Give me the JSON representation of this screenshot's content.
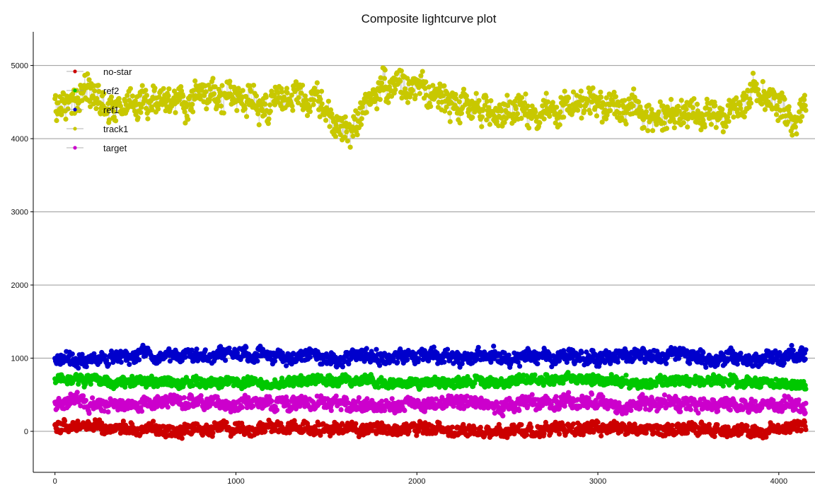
{
  "chart_data": {
    "type": "scatter",
    "title": "Composite lightcurve plot",
    "xlabel": "",
    "ylabel": "",
    "xlim": [
      -120,
      4200
    ],
    "ylim": [
      -560,
      5460
    ],
    "x_ticks": [
      0,
      1000,
      2000,
      3000,
      4000
    ],
    "y_ticks": [
      0,
      1000,
      2000,
      3000,
      4000,
      5000
    ],
    "grid": "horizontal",
    "legend_position": "top-left",
    "n_points": 4150,
    "series": [
      {
        "name": "no-star",
        "color": "#cc0000",
        "marker": "circle",
        "line": true,
        "baseline": 30,
        "spread": 85,
        "range": [
          -270,
          300
        ],
        "anchors": [
          [
            0,
            80
          ],
          [
            300,
            40
          ],
          [
            600,
            30
          ],
          [
            900,
            20
          ],
          [
            1200,
            30
          ],
          [
            1500,
            40
          ],
          [
            1800,
            20
          ],
          [
            2100,
            30
          ],
          [
            2400,
            10
          ],
          [
            2700,
            20
          ],
          [
            3000,
            40
          ],
          [
            3300,
            30
          ],
          [
            3600,
            20
          ],
          [
            3900,
            10
          ],
          [
            4150,
            60
          ]
        ]
      },
      {
        "name": "ref2",
        "color": "#00c800",
        "marker": "circle",
        "line": true,
        "baseline": 690,
        "spread": 70,
        "range": [
          450,
          900
        ],
        "anchors": [
          [
            0,
            720
          ],
          [
            300,
            680
          ],
          [
            600,
            690
          ],
          [
            900,
            680
          ],
          [
            1200,
            660
          ],
          [
            1500,
            700
          ],
          [
            1800,
            680
          ],
          [
            2100,
            660
          ],
          [
            2400,
            680
          ],
          [
            2700,
            690
          ],
          [
            3000,
            700
          ],
          [
            3300,
            680
          ],
          [
            3600,
            700
          ],
          [
            3900,
            680
          ],
          [
            4150,
            620
          ]
        ]
      },
      {
        "name": "ref1",
        "color": "#0000cc",
        "marker": "circle",
        "line": true,
        "baseline": 1000,
        "spread": 95,
        "range": [
          780,
          1380
        ],
        "anchors": [
          [
            0,
            960
          ],
          [
            300,
            990
          ],
          [
            600,
            1030
          ],
          [
            900,
            1050
          ],
          [
            1200,
            1000
          ],
          [
            1500,
            1020
          ],
          [
            1800,
            990
          ],
          [
            2100,
            1030
          ],
          [
            2400,
            1010
          ],
          [
            2700,
            1020
          ],
          [
            3000,
            1000
          ],
          [
            3300,
            1040
          ],
          [
            3600,
            1020
          ],
          [
            3900,
            1000
          ],
          [
            4150,
            1040
          ]
        ]
      },
      {
        "name": "track1",
        "color": "#c8c800",
        "marker": "circle",
        "line": true,
        "baseline": 4450,
        "spread": 210,
        "range": [
          3780,
          5200
        ],
        "anchors": [
          [
            0,
            4400
          ],
          [
            150,
            4650
          ],
          [
            300,
            4450
          ],
          [
            500,
            4500
          ],
          [
            700,
            4500
          ],
          [
            900,
            4550
          ],
          [
            1100,
            4480
          ],
          [
            1300,
            4520
          ],
          [
            1400,
            4600
          ],
          [
            1500,
            4350
          ],
          [
            1620,
            4050
          ],
          [
            1750,
            4600
          ],
          [
            1850,
            4750
          ],
          [
            2000,
            4650
          ],
          [
            2150,
            4600
          ],
          [
            2300,
            4450
          ],
          [
            2500,
            4300
          ],
          [
            2700,
            4400
          ],
          [
            2900,
            4450
          ],
          [
            3100,
            4450
          ],
          [
            3300,
            4300
          ],
          [
            3500,
            4350
          ],
          [
            3700,
            4300
          ],
          [
            3850,
            4650
          ],
          [
            3950,
            4550
          ],
          [
            4050,
            4250
          ],
          [
            4150,
            4350
          ]
        ]
      },
      {
        "name": "target",
        "color": "#cc00cc",
        "marker": "circle",
        "line": true,
        "baseline": 390,
        "spread": 95,
        "range": [
          120,
          760
        ],
        "anchors": [
          [
            0,
            400
          ],
          [
            300,
            360
          ],
          [
            600,
            390
          ],
          [
            900,
            380
          ],
          [
            1200,
            390
          ],
          [
            1500,
            400
          ],
          [
            1800,
            370
          ],
          [
            2100,
            390
          ],
          [
            2400,
            380
          ],
          [
            2700,
            390
          ],
          [
            3000,
            400
          ],
          [
            3300,
            390
          ],
          [
            3600,
            380
          ],
          [
            3900,
            370
          ],
          [
            4150,
            360
          ]
        ]
      }
    ]
  }
}
